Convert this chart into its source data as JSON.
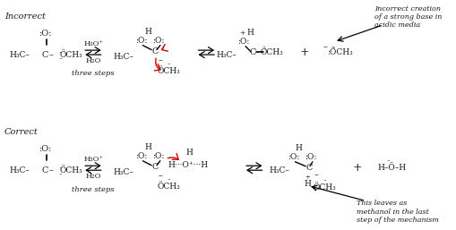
{
  "figsize": [
    5.1,
    2.57
  ],
  "dpi": 100,
  "bg_color": "#ffffff",
  "font_color": "#1a1a1a",
  "red_color": "#cc0000",
  "rows": {
    "top_label": "Incorrect",
    "bot_label": "Correct",
    "three_steps": "three steps",
    "ann_top": "Incorrect creation\nof a strong base in\nacidic media",
    "ann_bot": "This leaves as\nmethanol in the last\nstep of the mechanism"
  }
}
